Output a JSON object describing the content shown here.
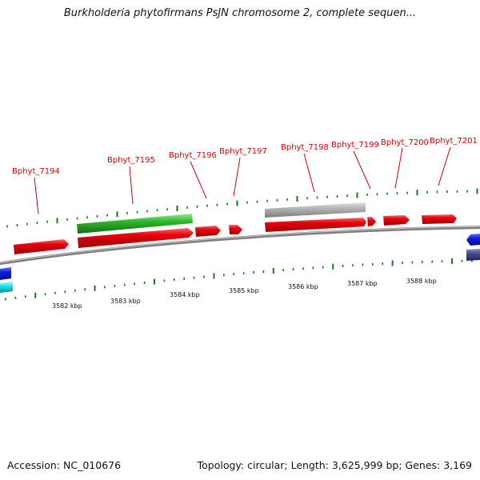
{
  "title": "Burkholderia phytofirmans PsJN chromosome 2, complete sequen...",
  "footer": {
    "accession": "Accession: NC_010676",
    "summary": "Topology: circular; Length: 3,625,999 bp; Genes: 3,169"
  },
  "colors": {
    "gene_red": "#e8000b",
    "gene_green": "#2db82d",
    "gene_gray": "#b4b4b4",
    "gene_blue": "#0a1ee0",
    "gene_cyan": "#18e6f0",
    "gene_slate": "#4a4a96",
    "label_red": "#d40000",
    "tick_green": "#1a7a1a",
    "backbone": "#808080"
  },
  "gene_labels": [
    "Bphyt_7194",
    "Bphyt_7195",
    "Bphyt_7196",
    "Bphyt_7197",
    "Bphyt_7198",
    "Bphyt_7199",
    "Bphyt_7200",
    "Bphyt_7201"
  ],
  "kbp_labels": [
    "3582 kbp",
    "3583 kbp",
    "3584 kbp",
    "3585 kbp",
    "3586 kbp",
    "3587 kbp",
    "3588 kbp"
  ]
}
